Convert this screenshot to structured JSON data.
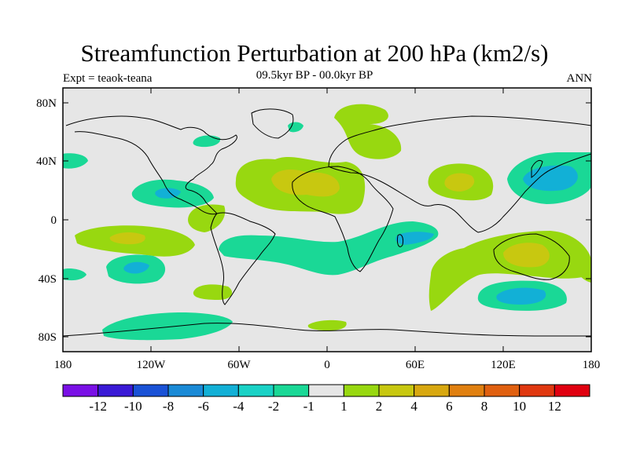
{
  "header": {
    "title": "Streamfunction Perturbation at 200 hPa (km2/s)",
    "subtitle": "09.5kyr BP - 00.0kyr BP",
    "experiment": "Expt = teaok-teana",
    "period": "ANN"
  },
  "map": {
    "y_ticks": [
      "80N",
      "40N",
      "0",
      "40S",
      "80S"
    ],
    "x_ticks": [
      "180",
      "120W",
      "60W",
      "0",
      "60E",
      "120E",
      "180"
    ],
    "background_color": "#e6e6e6"
  },
  "colorbar": {
    "colors": [
      "#7a10e6",
      "#3a1ad6",
      "#1a52d6",
      "#1a8ad6",
      "#12b0d6",
      "#1ad2c6",
      "#1ad896",
      "#e6e6e6",
      "#98d810",
      "#c8c810",
      "#d8a810",
      "#e08010",
      "#e06010",
      "#e03810",
      "#e00010"
    ],
    "labels": [
      "-12",
      "-10",
      "-8",
      "-6",
      "-4",
      "-2",
      "-1",
      "1",
      "2",
      "4",
      "6",
      "8",
      "10",
      "12"
    ]
  }
}
